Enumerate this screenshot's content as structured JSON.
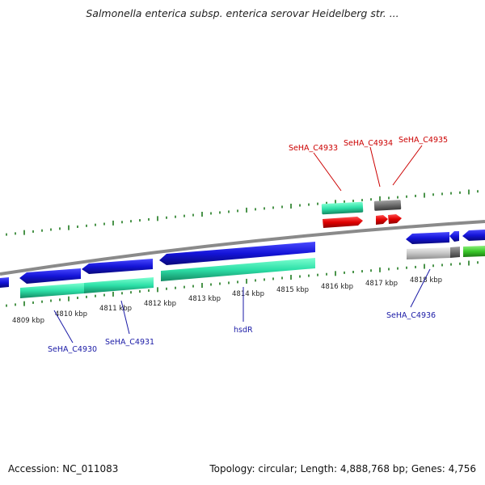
{
  "header": {
    "title": "Salmonella enterica subsp. enterica serovar Heidelberg str. ..."
  },
  "footer": {
    "accession": "Accession: NC_011083",
    "summary": "Topology: circular; Length: 4,888,768 bp; Genes: 4,756"
  },
  "scale_labels": [
    "4809 kbp",
    "4810 kbp",
    "4811 kbp",
    "4812 kbp",
    "4813 kbp",
    "4814 kbp",
    "4815 kbp",
    "4816 kbp",
    "4817 kbp",
    "4818 kbp"
  ],
  "gene_labels": {
    "top": [
      "SeHA_C4933",
      "SeHA_C4934",
      "SeHA_C4935"
    ],
    "bottom": [
      "SeHA_C4930",
      "SeHA_C4931",
      "hsdR",
      "SeHA_C4936"
    ]
  },
  "colors": {
    "backbone": "#8a8a8a",
    "cds_blue": "#1414d8",
    "gene_green": "#2de0a8",
    "trna_red": "#e00000",
    "gene_grey": "#6d6d6d",
    "gene_lightgrey": "#c4c4c4",
    "gene_lime": "#3ac82a",
    "tick_green": "#1e7a1e",
    "label_red": "#cc0000",
    "label_blue": "#1a1aa6"
  }
}
